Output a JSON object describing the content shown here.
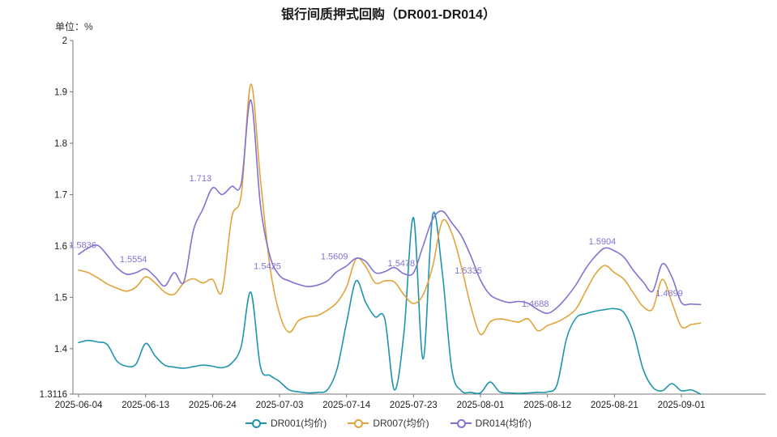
{
  "header": {
    "title": "银行间质押式回购（DR001-DR014）",
    "unit_label": "单位：%"
  },
  "chart_data": {
    "type": "line",
    "title": "银行间质押式回购（DR001-DR014）",
    "ylabel": "单位：%",
    "xlabel": "",
    "ylim": [
      1.3116,
      2.0
    ],
    "grid": false,
    "legend_position": "bottom",
    "axis_color": "#777777",
    "tick_label_color": "#222222",
    "x": [
      "2025-06-04",
      "2025-06-05",
      "2025-06-06",
      "2025-06-09",
      "2025-06-10",
      "2025-06-11",
      "2025-06-12",
      "2025-06-13",
      "2025-06-16",
      "2025-06-17",
      "2025-06-18",
      "2025-06-19",
      "2025-06-20",
      "2025-06-23",
      "2025-06-24",
      "2025-06-25",
      "2025-06-26",
      "2025-06-27",
      "2025-06-30",
      "2025-07-01",
      "2025-07-02",
      "2025-07-03",
      "2025-07-04",
      "2025-07-07",
      "2025-07-08",
      "2025-07-09",
      "2025-07-10",
      "2025-07-11",
      "2025-07-14",
      "2025-07-15",
      "2025-07-16",
      "2025-07-17",
      "2025-07-18",
      "2025-07-21",
      "2025-07-22",
      "2025-07-23",
      "2025-07-24",
      "2025-07-25",
      "2025-07-28",
      "2025-07-29",
      "2025-07-30",
      "2025-07-31",
      "2025-08-01",
      "2025-08-04",
      "2025-08-05",
      "2025-08-06",
      "2025-08-07",
      "2025-08-08",
      "2025-08-11",
      "2025-08-12",
      "2025-08-13",
      "2025-08-14",
      "2025-08-15",
      "2025-08-18",
      "2025-08-19",
      "2025-08-20",
      "2025-08-21",
      "2025-08-22",
      "2025-08-25",
      "2025-08-26",
      "2025-08-27",
      "2025-08-28",
      "2025-08-29",
      "2025-09-01",
      "2025-09-02",
      "2025-09-03"
    ],
    "x_tick_indices": [
      0,
      7,
      14,
      21,
      28,
      35,
      42,
      49,
      56,
      63
    ],
    "y_ticks": [
      {
        "value": 2.0,
        "label": "2"
      },
      {
        "value": 1.9,
        "label": "1.9"
      },
      {
        "value": 1.8,
        "label": "1.8"
      },
      {
        "value": 1.7,
        "label": "1.7"
      },
      {
        "value": 1.6,
        "label": "1.6"
      },
      {
        "value": 1.5,
        "label": "1.5"
      },
      {
        "value": 1.4,
        "label": "1.4"
      },
      {
        "value": 1.3116,
        "label": "1.3116"
      }
    ],
    "series": [
      {
        "name": "DR001(均价)",
        "color": "#1f94ad",
        "values": [
          1.412,
          1.416,
          1.413,
          1.408,
          1.376,
          1.366,
          1.37,
          1.41,
          1.386,
          1.368,
          1.364,
          1.362,
          1.365,
          1.368,
          1.366,
          1.363,
          1.372,
          1.405,
          1.51,
          1.365,
          1.348,
          1.336,
          1.32,
          1.316,
          1.314,
          1.315,
          1.32,
          1.36,
          1.45,
          1.532,
          1.49,
          1.462,
          1.458,
          1.32,
          1.43,
          1.655,
          1.38,
          1.66,
          1.55,
          1.36,
          1.318,
          1.315,
          1.314,
          1.335,
          1.316,
          1.314,
          1.313,
          1.314,
          1.315,
          1.316,
          1.33,
          1.42,
          1.46,
          1.468,
          1.473,
          1.476,
          1.478,
          1.47,
          1.43,
          1.36,
          1.325,
          1.318,
          1.332,
          1.318,
          1.32,
          1.3116
        ]
      },
      {
        "name": "DR007(均价)",
        "color": "#e2a33d",
        "values": [
          1.553,
          1.548,
          1.538,
          1.526,
          1.518,
          1.512,
          1.52,
          1.54,
          1.528,
          1.51,
          1.506,
          1.528,
          1.536,
          1.528,
          1.535,
          1.512,
          1.655,
          1.7,
          1.915,
          1.73,
          1.56,
          1.468,
          1.432,
          1.455,
          1.462,
          1.465,
          1.475,
          1.49,
          1.52,
          1.575,
          1.56,
          1.528,
          1.532,
          1.53,
          1.505,
          1.488,
          1.505,
          1.56,
          1.648,
          1.625,
          1.56,
          1.482,
          1.428,
          1.452,
          1.458,
          1.455,
          1.452,
          1.458,
          1.435,
          1.445,
          1.452,
          1.462,
          1.478,
          1.512,
          1.545,
          1.562,
          1.548,
          1.535,
          1.508,
          1.482,
          1.478,
          1.535,
          1.49,
          1.443,
          1.447,
          1.45
        ]
      },
      {
        "name": "DR014(均价)",
        "color": "#8273d2",
        "values": [
          1.5836,
          1.596,
          1.601,
          1.582,
          1.558,
          1.545,
          1.548,
          1.5554,
          1.54,
          1.522,
          1.548,
          1.53,
          1.63,
          1.672,
          1.713,
          1.7,
          1.716,
          1.722,
          1.884,
          1.68,
          1.58,
          1.5425,
          1.532,
          1.525,
          1.521,
          1.524,
          1.532,
          1.55,
          1.5609,
          1.576,
          1.57,
          1.548,
          1.55,
          1.558,
          1.546,
          1.5478,
          1.6,
          1.652,
          1.668,
          1.645,
          1.62,
          1.58,
          1.5335,
          1.505,
          1.495,
          1.49,
          1.492,
          1.488,
          1.476,
          1.4688,
          1.48,
          1.5,
          1.525,
          1.556,
          1.58,
          1.596,
          1.5904,
          1.578,
          1.552,
          1.53,
          1.512,
          1.565,
          1.54,
          1.4899,
          1.487,
          1.486
        ]
      }
    ],
    "annotations": [
      {
        "index": 0,
        "label": "1.5836"
      },
      {
        "index": 7,
        "label": "1.5554"
      },
      {
        "index": 14,
        "label": "1.713"
      },
      {
        "index": 21,
        "label": "1.5425"
      },
      {
        "index": 28,
        "label": "1.5609"
      },
      {
        "index": 35,
        "label": "1.5478"
      },
      {
        "index": 42,
        "label": "1.5335"
      },
      {
        "index": 49,
        "label": "1.4688"
      },
      {
        "index": 56,
        "label": "1.5904"
      },
      {
        "index": 63,
        "label": "1.4899"
      }
    ]
  }
}
